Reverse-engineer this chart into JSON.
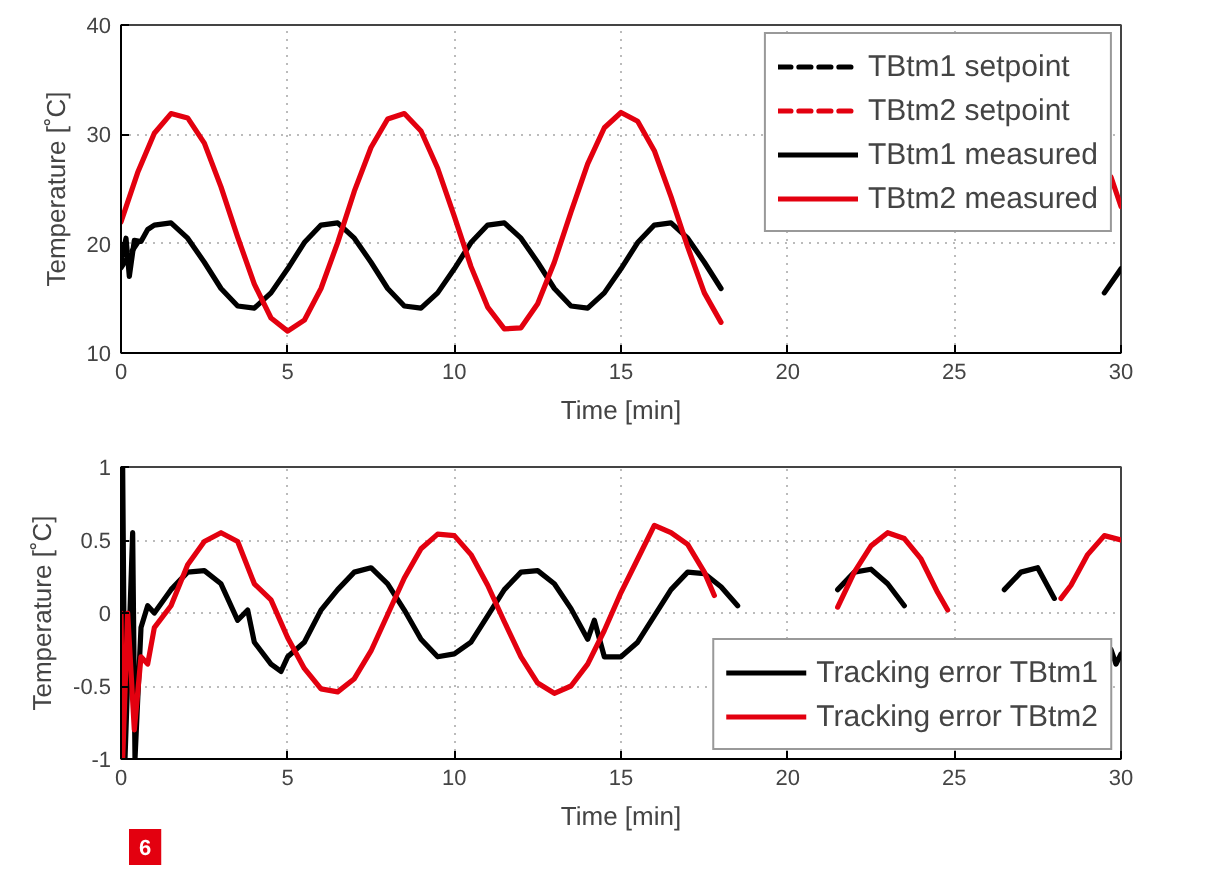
{
  "chart_data": [
    {
      "type": "line",
      "xlabel": "Time [min]",
      "ylabel": "Temperature [˚C]",
      "xlim": [
        0,
        30
      ],
      "xticks": [
        0,
        5,
        10,
        15,
        20,
        25,
        30
      ],
      "ylim": [
        10,
        40
      ],
      "yticks": [
        10,
        20,
        30,
        40
      ],
      "grid": true,
      "legend": "top right",
      "series": [
        {
          "name": "TBtm1 setpoint",
          "color": "#000000",
          "line_style": "dashed",
          "x": [
            0,
            0.5
          ],
          "values": [
            17.8,
            20.1
          ]
        },
        {
          "name": "TBtm2 setpoint",
          "color": "#e3000f",
          "line_style": "dashed"
        },
        {
          "name": "TBtm1 measured",
          "color": "#000000",
          "line_style": "solid",
          "x": [
            0,
            0.15,
            0.25,
            0.4,
            0.6,
            0.8,
            1,
            1.5,
            2,
            2.5,
            3,
            3.5,
            4,
            4.5,
            5,
            5.5,
            6,
            6.5,
            7,
            7.5,
            8,
            8.5,
            9,
            9.5,
            10,
            10.5,
            11,
            11.5,
            12,
            12.5,
            13,
            13.5,
            14,
            14.5,
            15,
            15.5,
            16,
            16.5,
            17,
            17.5,
            18,
            18.5,
            29.5,
            30
          ],
          "values": [
            18.3,
            20.5,
            17.0,
            20.3,
            20.2,
            21.3,
            21.7,
            21.9,
            20.5,
            18.3,
            15.9,
            14.3,
            14.1,
            15.5,
            17.7,
            20.1,
            21.7,
            21.9,
            20.5,
            18.3,
            15.9,
            14.3,
            14.1,
            15.5,
            17.7,
            20.1,
            21.7,
            21.9,
            20.5,
            18.3,
            15.9,
            14.3,
            14.1,
            15.5,
            17.7,
            20.1,
            21.7,
            21.9,
            20.5,
            18.3,
            15.9,
            null,
            15.5,
            17.7
          ]
        },
        {
          "name": "TBtm2 measured",
          "color": "#e3000f",
          "line_style": "solid",
          "x": [
            0,
            0.5,
            1,
            1.5,
            2,
            2.5,
            3,
            3.5,
            4,
            4.5,
            5,
            5.5,
            6,
            6.5,
            7,
            7.5,
            8,
            8.5,
            9,
            9.5,
            10,
            10.5,
            11,
            11.5,
            12,
            12.5,
            13,
            13.5,
            14,
            14.5,
            15,
            15.5,
            16,
            16.5,
            17,
            17.5,
            18,
            18.5,
            29,
            29.7,
            30
          ],
          "values": [
            22,
            26.5,
            30.1,
            31.9,
            31.5,
            29.2,
            25.2,
            20.6,
            16.3,
            13.2,
            12.0,
            13.0,
            15.9,
            20.1,
            24.8,
            28.8,
            31.4,
            31.9,
            30.3,
            26.9,
            22.5,
            17.9,
            14.2,
            12.2,
            12.3,
            14.5,
            18.3,
            22.9,
            27.3,
            30.6,
            32.0,
            31.2,
            28.5,
            24.3,
            19.7,
            15.5,
            12.8,
            null,
            null,
            26.1,
            23.4
          ]
        }
      ]
    },
    {
      "type": "line",
      "xlabel": "Time [min]",
      "ylabel": "Temperature [˚C]",
      "xlim": [
        0,
        30
      ],
      "xticks": [
        0,
        5,
        10,
        15,
        20,
        25,
        30
      ],
      "ylim": [
        -1,
        1
      ],
      "yticks": [
        -1,
        -0.5,
        0,
        0.5,
        1
      ],
      "grid": true,
      "legend": "bottom right",
      "annotations": [
        "6"
      ],
      "series": [
        {
          "name": "Tracking error TBtm1",
          "color": "#000000",
          "line_style": "solid",
          "x": [
            0,
            0.05,
            0.12,
            0.35,
            0.42,
            0.6,
            0.8,
            1,
            1.5,
            2,
            2.5,
            3,
            3.5,
            3.8,
            4,
            4.5,
            4.8,
            5,
            5.5,
            6,
            6.5,
            7,
            7.5,
            8,
            8.5,
            9,
            9.5,
            10,
            10.5,
            11,
            11.5,
            12,
            12.5,
            13,
            13.5,
            14,
            14.2,
            14.5,
            15,
            15.5,
            16,
            16.5,
            17,
            17.5,
            18,
            18.5,
            19,
            21,
            21.5,
            22,
            22.5,
            23,
            23.5,
            24,
            26,
            26.5,
            27,
            27.5,
            28,
            28.5,
            29.7,
            29.85,
            30
          ],
          "values": [
            0.3,
            1.0,
            -1.0,
            0.55,
            -1.0,
            -0.1,
            0.05,
            0.0,
            0.16,
            0.28,
            0.29,
            0.2,
            -0.05,
            0.02,
            -0.2,
            -0.35,
            -0.4,
            -0.3,
            -0.2,
            0.02,
            0.16,
            0.28,
            0.31,
            0.2,
            0.02,
            -0.18,
            -0.3,
            -0.28,
            -0.2,
            -0.02,
            0.16,
            0.28,
            0.29,
            0.2,
            0.03,
            -0.18,
            -0.05,
            -0.3,
            -0.3,
            -0.2,
            -0.02,
            0.16,
            0.28,
            0.27,
            0.18,
            0.05,
            null,
            null,
            0.16,
            0.28,
            0.3,
            0.2,
            0.05,
            null,
            null,
            0.16,
            0.28,
            0.31,
            0.1,
            null,
            -0.25,
            -0.35,
            -0.28
          ]
        },
        {
          "name": "Tracking error TBtm2",
          "color": "#e3000f",
          "line_style": "solid",
          "x": [
            0,
            0.05,
            0.2,
            0.4,
            0.6,
            0.8,
            1,
            1.5,
            2,
            2.5,
            3,
            3.5,
            4,
            4.5,
            5,
            5.5,
            6,
            6.5,
            7,
            7.5,
            8,
            8.5,
            9,
            9.5,
            10,
            10.5,
            11,
            11.5,
            12,
            12.5,
            13,
            13.5,
            14,
            14.5,
            15,
            15.5,
            16,
            16.5,
            17,
            17.5,
            17.8,
            18,
            21.5,
            22,
            22.5,
            23,
            23.5,
            24,
            24.5,
            24.8,
            26,
            28.2,
            28.5,
            29,
            29.5,
            30
          ],
          "values": [
            0.0,
            -1.0,
            0.0,
            -0.8,
            -0.3,
            -0.35,
            -0.1,
            0.05,
            0.33,
            0.49,
            0.55,
            0.49,
            0.2,
            0.09,
            -0.17,
            -0.38,
            -0.52,
            -0.54,
            -0.45,
            -0.26,
            -0.01,
            0.24,
            0.44,
            0.54,
            0.53,
            0.4,
            0.19,
            -0.06,
            -0.3,
            -0.48,
            -0.55,
            -0.5,
            -0.35,
            -0.12,
            0.14,
            0.37,
            0.6,
            0.55,
            0.47,
            0.28,
            0.12,
            null,
            0.04,
            0.28,
            0.46,
            0.55,
            0.51,
            0.37,
            0.14,
            0.02,
            null,
            0.1,
            0.19,
            0.4,
            0.53,
            0.5
          ]
        }
      ]
    }
  ]
}
